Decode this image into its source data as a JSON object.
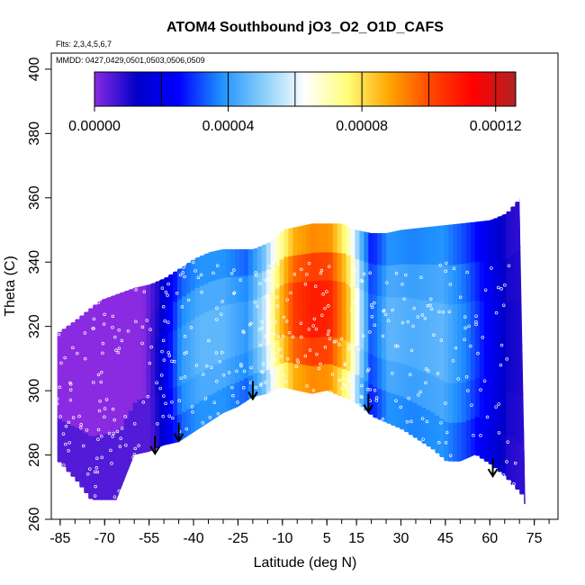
{
  "chart_data": {
    "type": "heatmap",
    "title": "ATOM4 Southbound jO3_O2_O1D_CAFS",
    "flights_note": "Flts: 2,3,4,5,6,7",
    "dates_note": "MMDD: 0427,0429,0501,0503,0506,0509",
    "xlabel": "Latitude (deg N)",
    "ylabel": "Theta (C)",
    "xlim": [
      -88,
      83
    ],
    "ylim": [
      260,
      405
    ],
    "x_ticks": [
      -85,
      -70,
      -55,
      -40,
      -25,
      -10,
      5,
      15,
      30,
      45,
      60,
      75
    ],
    "y_ticks": [
      260,
      280,
      300,
      320,
      340,
      360,
      380,
      400
    ],
    "colorbar": {
      "range": [
        0,
        0.000126
      ],
      "tick_values": [
        0,
        4e-05,
        8e-05,
        0.00012
      ],
      "tick_labels": [
        "0.00000",
        "0.00004",
        "0.00008",
        "0.00012"
      ],
      "colors": [
        "#8a2be2",
        "#0000c8",
        "#0000ff",
        "#1e90ff",
        "#87cefa",
        "#ffffff",
        "#ffff7a",
        "#ffa500",
        "#ff4500",
        "#ff0000",
        "#b22222"
      ]
    },
    "upper_boundary": [
      [
        -86,
        318
      ],
      [
        -80,
        322
      ],
      [
        -76,
        325
      ],
      [
        -72,
        328
      ],
      [
        -66,
        330
      ],
      [
        -60,
        332
      ],
      [
        -55,
        333
      ],
      [
        -50,
        335
      ],
      [
        -45,
        338
      ],
      [
        -40,
        341
      ],
      [
        -35,
        343
      ],
      [
        -30,
        344
      ],
      [
        -25,
        344
      ],
      [
        -20,
        344
      ],
      [
        -15,
        346
      ],
      [
        -10,
        350
      ],
      [
        0,
        352
      ],
      [
        10,
        352
      ],
      [
        15,
        350
      ],
      [
        20,
        349
      ],
      [
        25,
        349
      ],
      [
        30,
        350
      ],
      [
        40,
        351
      ],
      [
        50,
        352
      ],
      [
        60,
        353
      ],
      [
        65,
        355
      ],
      [
        70,
        360
      ]
    ],
    "lower_boundary": [
      [
        -86,
        278
      ],
      [
        -80,
        272
      ],
      [
        -75,
        266
      ],
      [
        -66,
        266
      ],
      [
        -60,
        280
      ],
      [
        -55,
        281
      ],
      [
        -50,
        283
      ],
      [
        -45,
        284
      ],
      [
        -40,
        287
      ],
      [
        -35,
        290
      ],
      [
        -30,
        293
      ],
      [
        -25,
        295
      ],
      [
        -20,
        298
      ],
      [
        -15,
        299
      ],
      [
        -10,
        301
      ],
      [
        -5,
        300
      ],
      [
        0,
        299
      ],
      [
        5,
        300
      ],
      [
        10,
        298
      ],
      [
        15,
        296
      ],
      [
        20,
        292
      ],
      [
        25,
        290
      ],
      [
        30,
        288
      ],
      [
        35,
        285
      ],
      [
        40,
        282
      ],
      [
        45,
        278
      ],
      [
        50,
        278
      ],
      [
        55,
        280
      ],
      [
        60,
        277
      ],
      [
        65,
        273
      ],
      [
        70,
        268
      ],
      [
        72,
        264
      ]
    ],
    "field_profile": [
      [
        -86,
        0.0
      ],
      [
        -65,
        0.0
      ],
      [
        -57,
        0.0
      ],
      [
        -52,
        1e-05
      ],
      [
        -44,
        3.5e-05
      ],
      [
        -38,
        4e-05
      ],
      [
        -30,
        4e-05
      ],
      [
        -22,
        3.5e-05
      ],
      [
        -16,
        5e-05
      ],
      [
        -12,
        7e-05
      ],
      [
        -6,
        9e-05
      ],
      [
        0,
        9.5e-05
      ],
      [
        6,
        9.4e-05
      ],
      [
        12,
        7.5e-05
      ],
      [
        16,
        5e-05
      ],
      [
        20,
        2.8e-05
      ],
      [
        26,
        4e-05
      ],
      [
        34,
        3.8e-05
      ],
      [
        44,
        4e-05
      ],
      [
        52,
        3.2e-05
      ],
      [
        60,
        2e-05
      ],
      [
        66,
        1e-05
      ],
      [
        72,
        8e-06
      ]
    ],
    "arrows": [
      [
        -53,
        286
      ],
      [
        -45,
        290
      ],
      [
        -20,
        303
      ],
      [
        19,
        299
      ],
      [
        61,
        279
      ]
    ]
  }
}
